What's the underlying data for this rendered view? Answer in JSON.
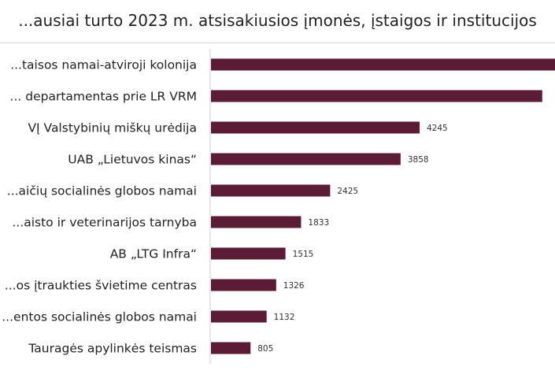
{
  "chart_data": {
    "type": "bar",
    "orientation": "horizontal",
    "title": "...ausiai turto 2023 m. atsisakiusios įmonės, įstaigos ir institucijos",
    "categories": [
      "...taisos namai-atviroji kolonija",
      "... departamentas prie LR VRM",
      "VĮ Valstybinių miškų urėdija",
      "UAB „Lietuvos kinas“",
      "...aičių socialinės globos namai",
      "...aisto ir veterinarijos tarnyba",
      "AB „LTG Infra“",
      "...os įtraukties švietime centras",
      "...entos socialinės globos namai",
      "Tauragės apylinkės teismas"
    ],
    "values": [
      7000,
      6740,
      4245,
      3858,
      2425,
      1833,
      1515,
      1326,
      1132,
      805
    ],
    "value_labels": [
      "",
      "",
      "4245",
      "3858",
      "2425",
      "1833",
      "1515",
      "1326",
      "1132",
      "805"
    ],
    "xlim": [
      0,
      7000
    ],
    "grid": false,
    "legend": "none",
    "bar_color": "#5b1a36"
  }
}
